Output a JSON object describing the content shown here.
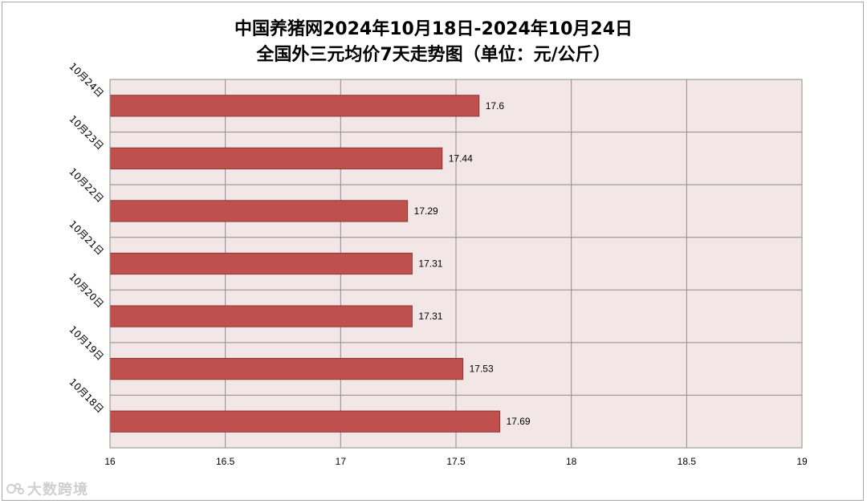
{
  "chart_data": {
    "type": "bar",
    "orientation": "horizontal",
    "title": "中国养猪网2024年10月18日-2024年10月24日",
    "subtitle": "全国外三元均价7天走势图（单位：元/公斤）",
    "categories": [
      "10月24日",
      "10月23日",
      "10月22日",
      "10月21日",
      "10月20日",
      "10月19日",
      "10月18日"
    ],
    "values": [
      17.6,
      17.44,
      17.29,
      17.31,
      17.31,
      17.53,
      17.69
    ],
    "data_labels": [
      "17.6",
      "17.44",
      "17.29",
      "17.31",
      "17.31",
      "17.53",
      "17.69"
    ],
    "xlim": [
      16,
      19
    ],
    "x_ticks": [
      16,
      16.5,
      17,
      17.5,
      18,
      18.5,
      19
    ],
    "x_tick_labels": [
      "16",
      "16.5",
      "17",
      "17.5",
      "18",
      "18.5",
      "19"
    ],
    "grid": true,
    "legend": "none",
    "colors": {
      "bar_fill": "#c0504d",
      "bar_stroke": "#8c3836",
      "plot_background": "#f2e6e6",
      "grid": "#8c8c8c"
    }
  },
  "watermark": {
    "text": "大数跨境",
    "icon": "watermark-logo-icon"
  }
}
